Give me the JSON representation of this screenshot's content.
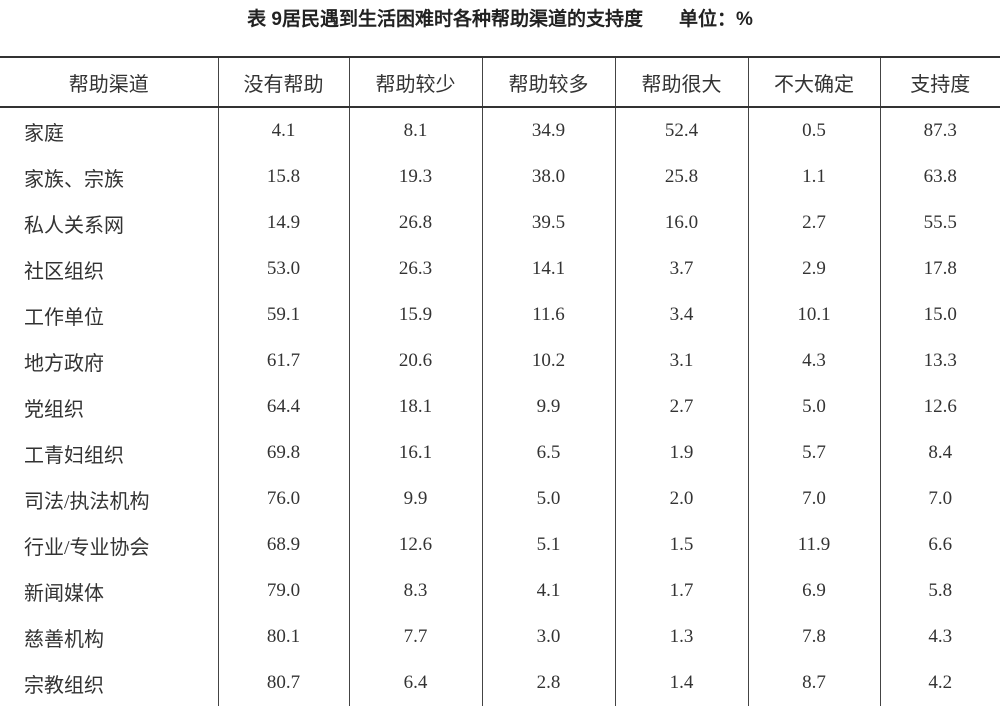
{
  "title": "表 9居民遇到生活困难时各种帮助渠道的支持度",
  "unit": "单位：%",
  "table": {
    "headers": [
      "帮助渠道",
      "没有帮助",
      "帮助较少",
      "帮助较多",
      "帮助很大",
      "不大确定",
      "支持度"
    ],
    "rows": [
      [
        "家庭",
        "4.1",
        "8.1",
        "34.9",
        "52.4",
        "0.5",
        "87.3"
      ],
      [
        "家族、宗族",
        "15.8",
        "19.3",
        "38.0",
        "25.8",
        "1.1",
        "63.8"
      ],
      [
        "私人关系网",
        "14.9",
        "26.8",
        "39.5",
        "16.0",
        "2.7",
        "55.5"
      ],
      [
        "社区组织",
        "53.0",
        "26.3",
        "14.1",
        "3.7",
        "2.9",
        "17.8"
      ],
      [
        "工作单位",
        "59.1",
        "15.9",
        "11.6",
        "3.4",
        "10.1",
        "15.0"
      ],
      [
        "地方政府",
        "61.7",
        "20.6",
        "10.2",
        "3.1",
        "4.3",
        "13.3"
      ],
      [
        "党组织",
        "64.4",
        "18.1",
        "9.9",
        "2.7",
        "5.0",
        "12.6"
      ],
      [
        "工青妇组织",
        "69.8",
        "16.1",
        "6.5",
        "1.9",
        "5.7",
        "8.4"
      ],
      [
        "司法/执法机构",
        "76.0",
        "9.9",
        "5.0",
        "2.0",
        "7.0",
        "7.0"
      ],
      [
        "行业/专业协会",
        "68.9",
        "12.6",
        "5.1",
        "1.5",
        "11.9",
        "6.6"
      ],
      [
        "新闻媒体",
        "79.0",
        "8.3",
        "4.1",
        "1.7",
        "6.9",
        "5.8"
      ],
      [
        "慈善机构",
        "80.1",
        "7.7",
        "3.0",
        "1.3",
        "7.8",
        "4.3"
      ],
      [
        "宗教组织",
        "80.7",
        "6.4",
        "2.8",
        "1.4",
        "8.7",
        "4.2"
      ]
    ]
  }
}
